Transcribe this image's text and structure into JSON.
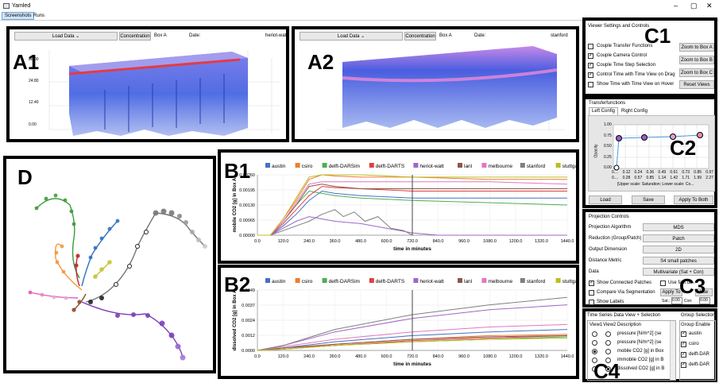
{
  "window": {
    "title": "Yamled",
    "tabs": [
      "Screenshots",
      "Runs"
    ],
    "controls": [
      "–",
      "▢",
      "✕"
    ]
  },
  "panel_labels": {
    "a1": "A1",
    "a2": "A2",
    "b1": "B1",
    "b2": "B2",
    "c1": "C1",
    "c2": "C2",
    "c3": "C3",
    "c4": "C4",
    "d": "D"
  },
  "volume": [
    {
      "load": "Load Data",
      "concentration": "Concentration",
      "box": "Box A",
      "date_label": "Date:",
      "dataset": "heriot-watt",
      "axis_ticks": [
        "36.00",
        "24.80",
        "12.40",
        "0.00"
      ]
    },
    {
      "load": "Load Data",
      "concentration": "Concentration",
      "box": "Box A",
      "date_label": "Date:",
      "dataset": "stanford"
    }
  ],
  "viewer": {
    "title": "Viewer Settings and Controls",
    "checks": [
      {
        "label": "Couple Transfer Functions",
        "checked": false
      },
      {
        "label": "Couple Camera Control",
        "checked": true
      },
      {
        "label": "Couple Time Step Selection",
        "checked": true
      },
      {
        "label": "Control Time with Time View on Drag",
        "checked": true
      },
      {
        "label": "Show Time with Time View on Hover",
        "checked": false
      }
    ],
    "buttons": [
      "Zoom to Box A",
      "Zoom to Box B",
      "Zoom to Box C",
      "Reset Views"
    ]
  },
  "transfer": {
    "title": "Transferfunctions",
    "tabs": [
      "Left Config",
      "Right Config"
    ],
    "ylabel": "Opacity",
    "yticks": [
      "1.00",
      "0.75",
      "0.50",
      "0.25",
      "0.00"
    ],
    "xticks1": [
      "0....",
      "0.12",
      "0.24",
      "0.36",
      "0.49",
      "0.61",
      "0.73",
      "0.85",
      "0.97"
    ],
    "xticks2": [
      "0....",
      "0.28",
      "0.57",
      "0.85",
      "1.14",
      "1.42",
      "1.71",
      "1.99",
      "2.27"
    ],
    "caption": "[Upper scale: Saturation; Lower scale: Co...",
    "buttons": [
      "Load",
      "Save",
      "Apply To Both"
    ]
  },
  "projection": {
    "title": "Projection Controls",
    "rows": [
      {
        "label": "Projection Algorithm",
        "value": "MDS"
      },
      {
        "label": "Reduction (Group/Patch)",
        "value": "Patch"
      },
      {
        "label": "Output Dimension",
        "value": "2D"
      },
      {
        "label": "Distance Metric",
        "value": "S4 small patches"
      },
      {
        "label": "Data",
        "value": "Multivariate (Sat + Con)"
      }
    ],
    "checks": [
      {
        "label": "Show Connected Patches",
        "checked": true
      },
      {
        "label": "Use fast di...",
        "checked": false
      },
      {
        "label": "Compare Via Segmentation",
        "checked": false
      },
      {
        "label": "Show Labels",
        "checked": false
      }
    ],
    "apply": "Apply To",
    "use": "Use",
    "sat_label": "Sat.:",
    "sat_value": "0.00",
    "con_label": "Con:",
    "con_value": "0.00"
  },
  "timeseries": {
    "title": "Time Series Data View + Selection",
    "group_title": "Group Selection",
    "headers": [
      "View1",
      "View2",
      "Description"
    ],
    "rows": [
      "pressure [N/m^2] (se",
      "pressure [N/m^2] (se",
      "mobile CO2 [g] in Box",
      "immobile CO2 [g] in B",
      "dissolved CO2 [g] in B"
    ],
    "group_header": "Group Enable",
    "groups": [
      "austin",
      "csiro",
      "delft-DAR",
      "delft-DAR"
    ]
  },
  "chart_data": [
    {
      "type": "line",
      "ylabel": "mobile CO2 [g] in Box A",
      "xlabel": "time in minutes",
      "yticks": [
        "0.00260",
        "0.00195",
        "0.00130",
        "0.00065",
        "0.00000"
      ],
      "xticks": [
        "0.0",
        "120.0",
        "240.0",
        "360.0",
        "480.0",
        "600.0",
        "720.0",
        "840.0",
        "960.0",
        "1080.0",
        "1200.0",
        "1320.0",
        "1440.0"
      ],
      "xlim": [
        0,
        1440
      ],
      "ylim": [
        0,
        0.0026
      ],
      "cursor": 720,
      "series": [
        {
          "name": "austin",
          "color": "#4472c4",
          "x": [
            0,
            60,
            120,
            180,
            240,
            300,
            360,
            480,
            720,
            1080,
            1440
          ],
          "y": [
            0,
            0,
            0.0004,
            0.0009,
            0.0015,
            0.0019,
            0.0018,
            0.0017,
            0.0016,
            0.0016,
            0.0016
          ]
        },
        {
          "name": "csiro",
          "color": "#ed7d31",
          "x": [
            0,
            60,
            120,
            180,
            240,
            300,
            360,
            480,
            720,
            1080,
            1440
          ],
          "y": [
            0,
            0,
            0.0007,
            0.0015,
            0.0024,
            0.0026,
            0.00255,
            0.0025,
            0.0025,
            0.0024,
            0.0024
          ]
        },
        {
          "name": "delft-DARSim",
          "color": "#4caf50",
          "x": [
            0,
            60,
            120,
            180,
            240,
            300,
            360,
            480,
            720,
            1080,
            1440
          ],
          "y": [
            0,
            0,
            0.0006,
            0.0013,
            0.0019,
            0.0018,
            0.0017,
            0.0016,
            0.0015,
            0.0014,
            0.0013
          ]
        },
        {
          "name": "delft-DARTS",
          "color": "#e04040",
          "x": [
            0,
            60,
            120,
            180,
            240,
            300,
            360,
            480,
            720,
            1080,
            1440
          ],
          "y": [
            0,
            0,
            0.0005,
            0.0011,
            0.0017,
            0.0021,
            0.00205,
            0.002,
            0.0019,
            0.0019,
            0.0019
          ]
        },
        {
          "name": "heriot-watt",
          "color": "#a066c8",
          "x": [
            0,
            60,
            120,
            180,
            240,
            300,
            360,
            480,
            600,
            720,
            840,
            1440
          ],
          "y": [
            0,
            0,
            0.0003,
            0.0006,
            0.0008,
            0.0007,
            0.0006,
            0.0005,
            0.0003,
            0.0001,
            0,
            0
          ]
        },
        {
          "name": "lanl",
          "color": "#8c564b",
          "x": [
            0,
            60,
            120,
            180,
            240,
            300,
            360,
            480,
            720,
            1080,
            1440
          ],
          "y": [
            0,
            0,
            0.0006,
            0.0013,
            0.0021,
            0.0022,
            0.0021,
            0.002,
            0.002,
            0.002,
            0.002
          ]
        },
        {
          "name": "melbourne",
          "color": "#e377c2",
          "x": [
            0,
            60,
            120,
            180,
            240,
            300,
            360,
            480,
            720,
            1080,
            1440
          ],
          "y": [
            0,
            0,
            0.0006,
            0.0014,
            0.0022,
            0.0023,
            0.0023,
            0.0023,
            0.0023,
            0.0023,
            0.0022
          ]
        },
        {
          "name": "stanford",
          "color": "#7f7f7f",
          "x": [
            0,
            60,
            120,
            180,
            240,
            300,
            360,
            400,
            450,
            500,
            560,
            620,
            680,
            720
          ],
          "y": [
            0,
            0,
            0.0002,
            0.0004,
            0.0006,
            0.0009,
            0.0011,
            0.0008,
            0.001,
            0.0006,
            0.0008,
            0.0003,
            0.0002,
            0
          ]
        },
        {
          "name": "stuttgart",
          "color": "#bcbd22",
          "x": [
            0,
            60,
            120,
            180,
            240,
            300,
            360,
            480,
            720,
            1080,
            1440
          ],
          "y": [
            0,
            0,
            0.0007,
            0.0016,
            0.0025,
            0.0026,
            0.0026,
            0.0026,
            0.0025,
            0.0025,
            0.0025
          ]
        },
        {
          "name": "_start",
          "color": "#000000",
          "x": [],
          "y": []
        },
        {
          "name": "_end",
          "color": "#000000",
          "x": [],
          "y": []
        }
      ]
    },
    {
      "type": "line",
      "ylabel": "dissolved CO2 [g] in Box A",
      "xlabel": "time in minutes",
      "yticks": [
        "0.0049",
        "0.0037",
        "0.0024",
        "0.0012",
        "0.0000"
      ],
      "xticks": [
        "0.0",
        "120.0",
        "240.0",
        "360.0",
        "480.0",
        "600.0",
        "720.0",
        "840.0",
        "960.0",
        "1080.0",
        "1200.0",
        "1320.0",
        "1440.0"
      ],
      "xlim": [
        0,
        1440
      ],
      "ylim": [
        0,
        0.0049
      ],
      "cursor": 720,
      "series": [
        {
          "name": "austin",
          "color": "#4472c4",
          "x": [
            0,
            120,
            360,
            720,
            1080,
            1440
          ],
          "y": [
            0,
            0.0002,
            0.0007,
            0.0012,
            0.0015,
            0.0017
          ]
        },
        {
          "name": "csiro",
          "color": "#ed7d31",
          "x": [
            0,
            120,
            360,
            720,
            1080,
            1440
          ],
          "y": [
            0,
            0.0001,
            0.0005,
            0.0009,
            0.0012,
            0.0013
          ]
        },
        {
          "name": "delft-DARSim",
          "color": "#4caf50",
          "x": [
            0,
            120,
            360,
            720,
            1080,
            1440
          ],
          "y": [
            0,
            0.0001,
            0.0004,
            0.0007,
            0.0009,
            0.0011
          ]
        },
        {
          "name": "delft-DARTS",
          "color": "#e04040",
          "x": [
            0,
            120,
            360,
            720,
            1080,
            1440
          ],
          "y": [
            0,
            0.0001,
            0.0004,
            0.0008,
            0.001,
            0.0012
          ]
        },
        {
          "name": "heriot-watt",
          "color": "#a066c8",
          "x": [
            0,
            120,
            360,
            720,
            1080,
            1440
          ],
          "y": [
            0,
            0.0004,
            0.0015,
            0.0026,
            0.0033,
            0.0037
          ]
        },
        {
          "name": "lanl",
          "color": "#8c564b",
          "x": [
            0,
            120,
            360,
            720,
            1080,
            1440
          ],
          "y": [
            0,
            0.0002,
            0.0005,
            0.0009,
            0.0011,
            0.0012
          ]
        },
        {
          "name": "melbourne",
          "color": "#e377c2",
          "x": [
            0,
            120,
            360,
            720,
            1080,
            1440
          ],
          "y": [
            0,
            0.0003,
            0.0009,
            0.0015,
            0.0019,
            0.0021
          ]
        },
        {
          "name": "stanford",
          "color": "#7f7f7f",
          "x": [
            0,
            120,
            360,
            720,
            1080,
            1440
          ],
          "y": [
            0,
            0.0004,
            0.0017,
            0.0029,
            0.0037,
            0.0043
          ]
        },
        {
          "name": "stuttgart",
          "color": "#bcbd22",
          "x": [
            0,
            120,
            360,
            720,
            1080,
            1440
          ],
          "y": [
            0,
            0.0001,
            0.0004,
            0.0007,
            0.0009,
            0.001
          ]
        },
        {
          "name": "_start",
          "color": "#000000",
          "x": [],
          "y": []
        },
        {
          "name": "_end",
          "color": "#000000",
          "x": [],
          "y": []
        }
      ]
    }
  ]
}
